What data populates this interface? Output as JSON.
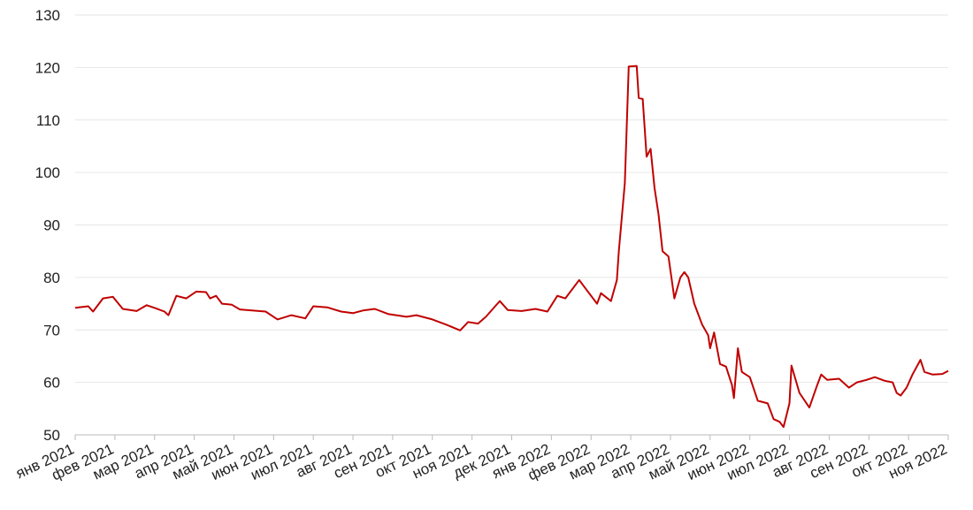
{
  "chart_data": {
    "type": "line",
    "x": [
      0,
      0.33,
      0.45,
      0.7,
      0.95,
      1.2,
      1.55,
      1.8,
      2.0,
      2.25,
      2.35,
      2.55,
      2.8,
      3.05,
      3.3,
      3.4,
      3.55,
      3.7,
      3.95,
      4.15,
      4.8,
      5.1,
      5.45,
      5.8,
      6.0,
      6.35,
      6.7,
      7.0,
      7.25,
      7.55,
      7.9,
      8.35,
      8.6,
      9.0,
      9.35,
      9.7,
      9.9,
      10.15,
      10.35,
      10.7,
      10.9,
      11.25,
      11.6,
      11.9,
      12.15,
      12.35,
      12.7,
      12.9,
      13.15,
      13.25,
      13.5,
      13.65,
      13.7,
      13.85,
      13.95,
      14.15,
      14.2,
      14.3,
      14.4,
      14.5,
      14.6,
      14.7,
      14.8,
      14.95,
      15.1,
      15.25,
      15.35,
      15.45,
      15.6,
      15.8,
      15.95,
      16.0,
      16.1,
      16.25,
      16.4,
      16.55,
      16.6,
      16.7,
      16.8,
      17.0,
      17.2,
      17.45,
      17.6,
      17.75,
      17.85,
      18.0,
      18.05,
      18.25,
      18.5,
      18.7,
      18.8,
      18.95,
      19.25,
      19.5,
      19.7,
      19.95,
      20.15,
      20.4,
      20.6,
      20.7,
      20.8,
      20.95,
      21.1,
      21.3,
      21.4,
      21.6,
      21.85,
      22.0
    ],
    "series": [
      {
        "color": "#c00000",
        "values": [
          74.2,
          74.5,
          73.5,
          76,
          76.3,
          74,
          73.6,
          74.7,
          74.2,
          73.5,
          72.8,
          76.5,
          76,
          77.3,
          77.2,
          76,
          76.5,
          75,
          74.8,
          73.9,
          73.5,
          72,
          72.8,
          72.2,
          74.5,
          74.3,
          73.5,
          73.2,
          73.7,
          74,
          73,
          72.5,
          72.8,
          72,
          71,
          69.9,
          71.5,
          71.2,
          72.5,
          75.5,
          73.8,
          73.6,
          74,
          73.5,
          76.5,
          76,
          79.5,
          77.5,
          75,
          77,
          75.5,
          79.5,
          85,
          98,
          120.2,
          120.3,
          114.2,
          114,
          103,
          104.5,
          97,
          92,
          85,
          84,
          76,
          80,
          81,
          80,
          75,
          71,
          69,
          66.5,
          69.5,
          63.5,
          63,
          59.5,
          57,
          66.5,
          62,
          61,
          56.5,
          56,
          53,
          52.5,
          51.5,
          56,
          63.2,
          58,
          55.2,
          59.5,
          61.5,
          60.5,
          60.7,
          59,
          60,
          60.5,
          61,
          60.3,
          60,
          58,
          57.5,
          59,
          61.5,
          64.3,
          62,
          61.5,
          61.6,
          62.2
        ]
      }
    ],
    "xlim": [
      0,
      22
    ],
    "xticks": [
      {
        "value": 0,
        "label": "янв 2021"
      },
      {
        "value": 1,
        "label": "фев 2021"
      },
      {
        "value": 2,
        "label": "мар 2021"
      },
      {
        "value": 3,
        "label": "апр 2021"
      },
      {
        "value": 4,
        "label": "май 2021"
      },
      {
        "value": 5,
        "label": "июн 2021"
      },
      {
        "value": 6,
        "label": "июл 2021"
      },
      {
        "value": 7,
        "label": "авг 2021"
      },
      {
        "value": 8,
        "label": "сен 2021"
      },
      {
        "value": 9,
        "label": "окт 2021"
      },
      {
        "value": 10,
        "label": "ноя 2021"
      },
      {
        "value": 11,
        "label": "дек 2021"
      },
      {
        "value": 12,
        "label": "янв 2022"
      },
      {
        "value": 13,
        "label": "фев 2022"
      },
      {
        "value": 14,
        "label": "мар 2022"
      },
      {
        "value": 15,
        "label": "апр 2022"
      },
      {
        "value": 16,
        "label": "май 2022"
      },
      {
        "value": 17,
        "label": "июн 2022"
      },
      {
        "value": 18,
        "label": "июл 2022"
      },
      {
        "value": 19,
        "label": "авг 2022"
      },
      {
        "value": 20,
        "label": "сен 2022"
      },
      {
        "value": 21,
        "label": "окт 2022"
      },
      {
        "value": 22,
        "label": "ноя 2022"
      }
    ],
    "ylim": [
      50,
      130
    ],
    "yticks": [
      50,
      60,
      70,
      80,
      90,
      100,
      110,
      120,
      130
    ],
    "grid": true
  }
}
